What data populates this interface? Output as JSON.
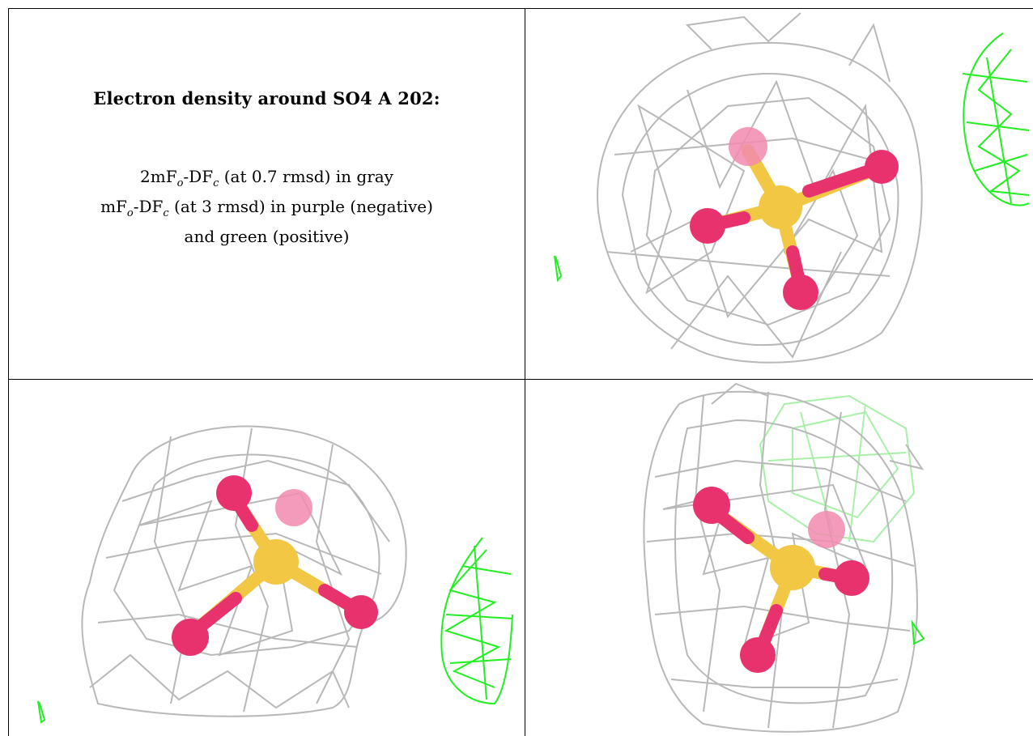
{
  "caption": {
    "title": "Electron density around SO4 A 202:",
    "line1": {
      "a": "2mF",
      "a_sub": "o",
      "b": "-DF",
      "b_sub": "c",
      "rest": " (at 0.7 rmsd) in gray"
    },
    "line2": {
      "a": "mF",
      "a_sub": "o",
      "b": "-DF",
      "b_sub": "c",
      "rest": " (at 3 rmsd) in purple (negative)"
    },
    "line3": "and green (positive)"
  },
  "colors": {
    "mesh_gray": "#b8b8b8",
    "mesh_green": "#22ee22",
    "mesh_green_faint": "#a8f0a8",
    "sulfur": "#f2c744",
    "oxygen": "#e8326e",
    "oxygen_faint": "#f28ab0",
    "border": "#000000"
  },
  "views": [
    {
      "name": "view-1",
      "atoms": [
        "S",
        "O",
        "O",
        "O",
        "O"
      ]
    },
    {
      "name": "view-2",
      "atoms": [
        "S",
        "O",
        "O",
        "O",
        "O"
      ]
    },
    {
      "name": "view-3",
      "atoms": [
        "S",
        "O",
        "O",
        "O",
        "O"
      ]
    }
  ]
}
